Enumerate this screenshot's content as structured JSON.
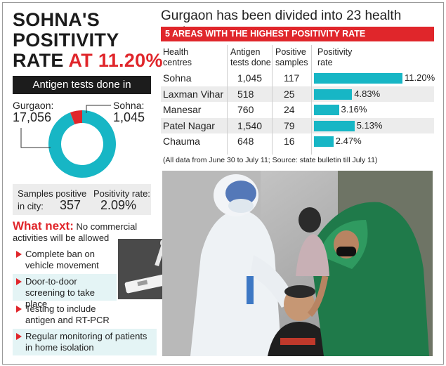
{
  "headline": {
    "line1": "SOHNA'S",
    "line2": "POSITIVITY",
    "line3_prefix": "RATE",
    "line3_value": "AT 11.20%"
  },
  "antigen": {
    "title": "Antigen tests done in",
    "gurgaon_label": "Gurgaon:",
    "gurgaon_value": "17,056",
    "sohna_label": "Sohna:",
    "sohna_value": "1,045"
  },
  "samples": {
    "label_line1": "Samples positive",
    "label_line2": "in city:",
    "value": "357",
    "rate_label": "Positivity rate:",
    "rate_value": "2.09%"
  },
  "what_next": {
    "heading": "What next:",
    "intro": "No commercial activities will be allowed",
    "bullets": [
      {
        "text": "Complete ban on vehicle movement"
      },
      {
        "text": "Door-to-door screening to take place"
      },
      {
        "text": "Testing to include antigen and RT-PCR"
      },
      {
        "text": "Regular monitoring of patients in home isolation"
      }
    ]
  },
  "right": {
    "title": "Gurgaon has been divided into 23 health centres",
    "banner": "5 AREAS WITH THE HIGHEST POSITIVITY RATE",
    "headers": {
      "centres": "Health centres",
      "tests": "Antigen tests done",
      "positive": "Positive samples",
      "rate": "Positivity rate"
    },
    "note": "(All data from June 30 to July 11; Source: state bulletin till July 11)"
  },
  "colors": {
    "accent_red": "#e0262b",
    "teal": "#17b6c5",
    "dark": "#1c1c1c"
  },
  "chart_data": [
    {
      "type": "pie",
      "title": "Antigen tests done in",
      "labels": [
        "Gurgaon",
        "Sohna"
      ],
      "values": [
        17056,
        1045
      ],
      "colors": [
        "#17b6c5",
        "#e0262b"
      ]
    },
    {
      "type": "bar",
      "title": "5 AREAS WITH THE HIGHEST POSITIVITY RATE",
      "categories": [
        "Sohna",
        "Laxman Vihar",
        "Manesar",
        "Patel Nagar",
        "Chauma"
      ],
      "antigen_tests": [
        "1,045",
        "518",
        "760",
        "1,540",
        "648"
      ],
      "positive_samples": [
        "117",
        "25",
        "24",
        "79",
        "16"
      ],
      "values": [
        11.2,
        4.83,
        3.16,
        5.13,
        2.47
      ],
      "value_labels": [
        "11.20%",
        "4.83%",
        "3.16%",
        "5.13%",
        "2.47%"
      ]
    }
  ]
}
